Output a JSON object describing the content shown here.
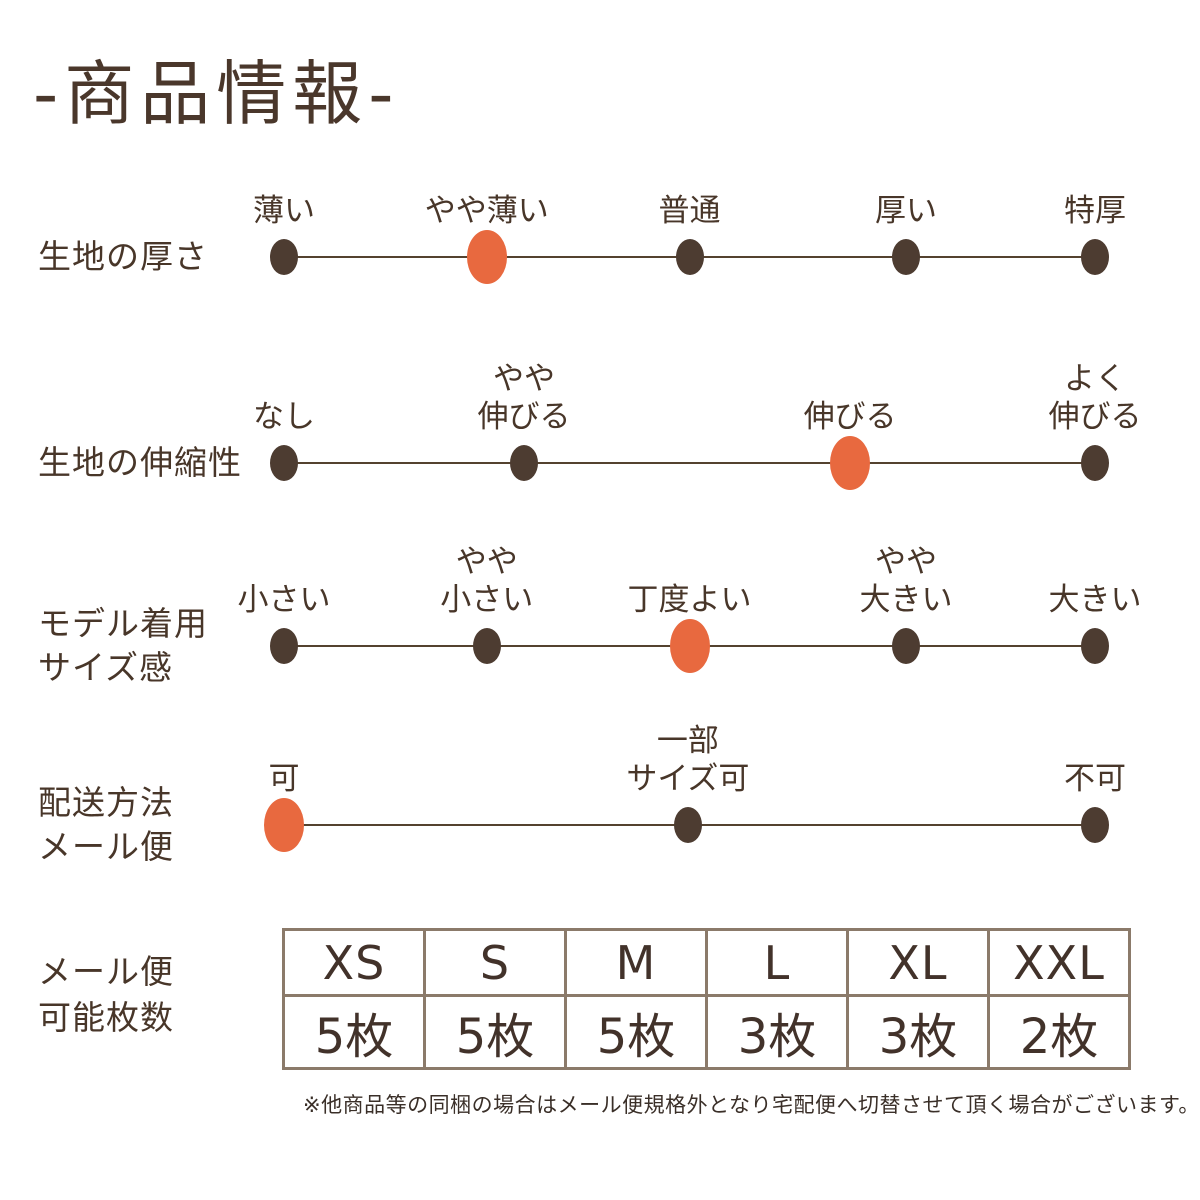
{
  "title": "-商品情報-",
  "colors": {
    "text": "#483629",
    "title_text": "#4a372b",
    "dot": "#4d3c31",
    "dot_selected": "#e8693f",
    "line": "#54422f",
    "table_border": "#8b7a6a",
    "background": "#ffffff"
  },
  "scales": [
    {
      "name": "fabric-thickness",
      "label_lines": [
        "生地の厚さ"
      ],
      "options": [
        {
          "lines": [
            "薄い"
          ],
          "pos": 0,
          "selected": false
        },
        {
          "lines": [
            "やや薄い"
          ],
          "pos": 0.25,
          "selected": true
        },
        {
          "lines": [
            "普通"
          ],
          "pos": 0.5,
          "selected": false
        },
        {
          "lines": [
            "厚い"
          ],
          "pos": 0.767,
          "selected": false
        },
        {
          "lines": [
            "特厚"
          ],
          "pos": 1,
          "selected": false
        }
      ]
    },
    {
      "name": "fabric-stretch",
      "label_lines": [
        "生地の伸縮性"
      ],
      "options": [
        {
          "lines": [
            "なし"
          ],
          "pos": 0,
          "selected": false
        },
        {
          "lines": [
            "やや",
            "伸びる"
          ],
          "pos": 0.296,
          "selected": false
        },
        {
          "lines": [
            "伸びる"
          ],
          "pos": 0.698,
          "selected": true
        },
        {
          "lines": [
            "よく",
            "伸びる"
          ],
          "pos": 1,
          "selected": false
        }
      ]
    },
    {
      "name": "model-size-fit",
      "label_lines": [
        "モデル着用",
        "サイズ感"
      ],
      "options": [
        {
          "lines": [
            "小さい"
          ],
          "pos": 0,
          "selected": false
        },
        {
          "lines": [
            "やや",
            "小さい"
          ],
          "pos": 0.25,
          "selected": false
        },
        {
          "lines": [
            "丁度よい"
          ],
          "pos": 0.5,
          "selected": true
        },
        {
          "lines": [
            "やや",
            "大きい"
          ],
          "pos": 0.767,
          "selected": false
        },
        {
          "lines": [
            "大きい"
          ],
          "pos": 1,
          "selected": false
        }
      ]
    },
    {
      "name": "delivery-mail-service",
      "label_lines": [
        "配送方法",
        "メール便"
      ],
      "options": [
        {
          "lines": [
            "可"
          ],
          "pos": 0,
          "selected": true
        },
        {
          "lines": [
            "一部",
            "サイズ可"
          ],
          "pos": 0.498,
          "selected": false
        },
        {
          "lines": [
            "不可"
          ],
          "pos": 1,
          "selected": false
        }
      ]
    }
  ],
  "table": {
    "label_lines": [
      "メール便",
      "可能枚数"
    ],
    "columns": [
      "XS",
      "S",
      "M",
      "L",
      "XL",
      "XXL"
    ],
    "values": [
      "5枚",
      "5枚",
      "5枚",
      "3枚",
      "3枚",
      "2枚"
    ]
  },
  "footnote": "※他商品等の同梱の場合はメール便規格外となり宅配便へ切替させて頂く場合がございます。"
}
